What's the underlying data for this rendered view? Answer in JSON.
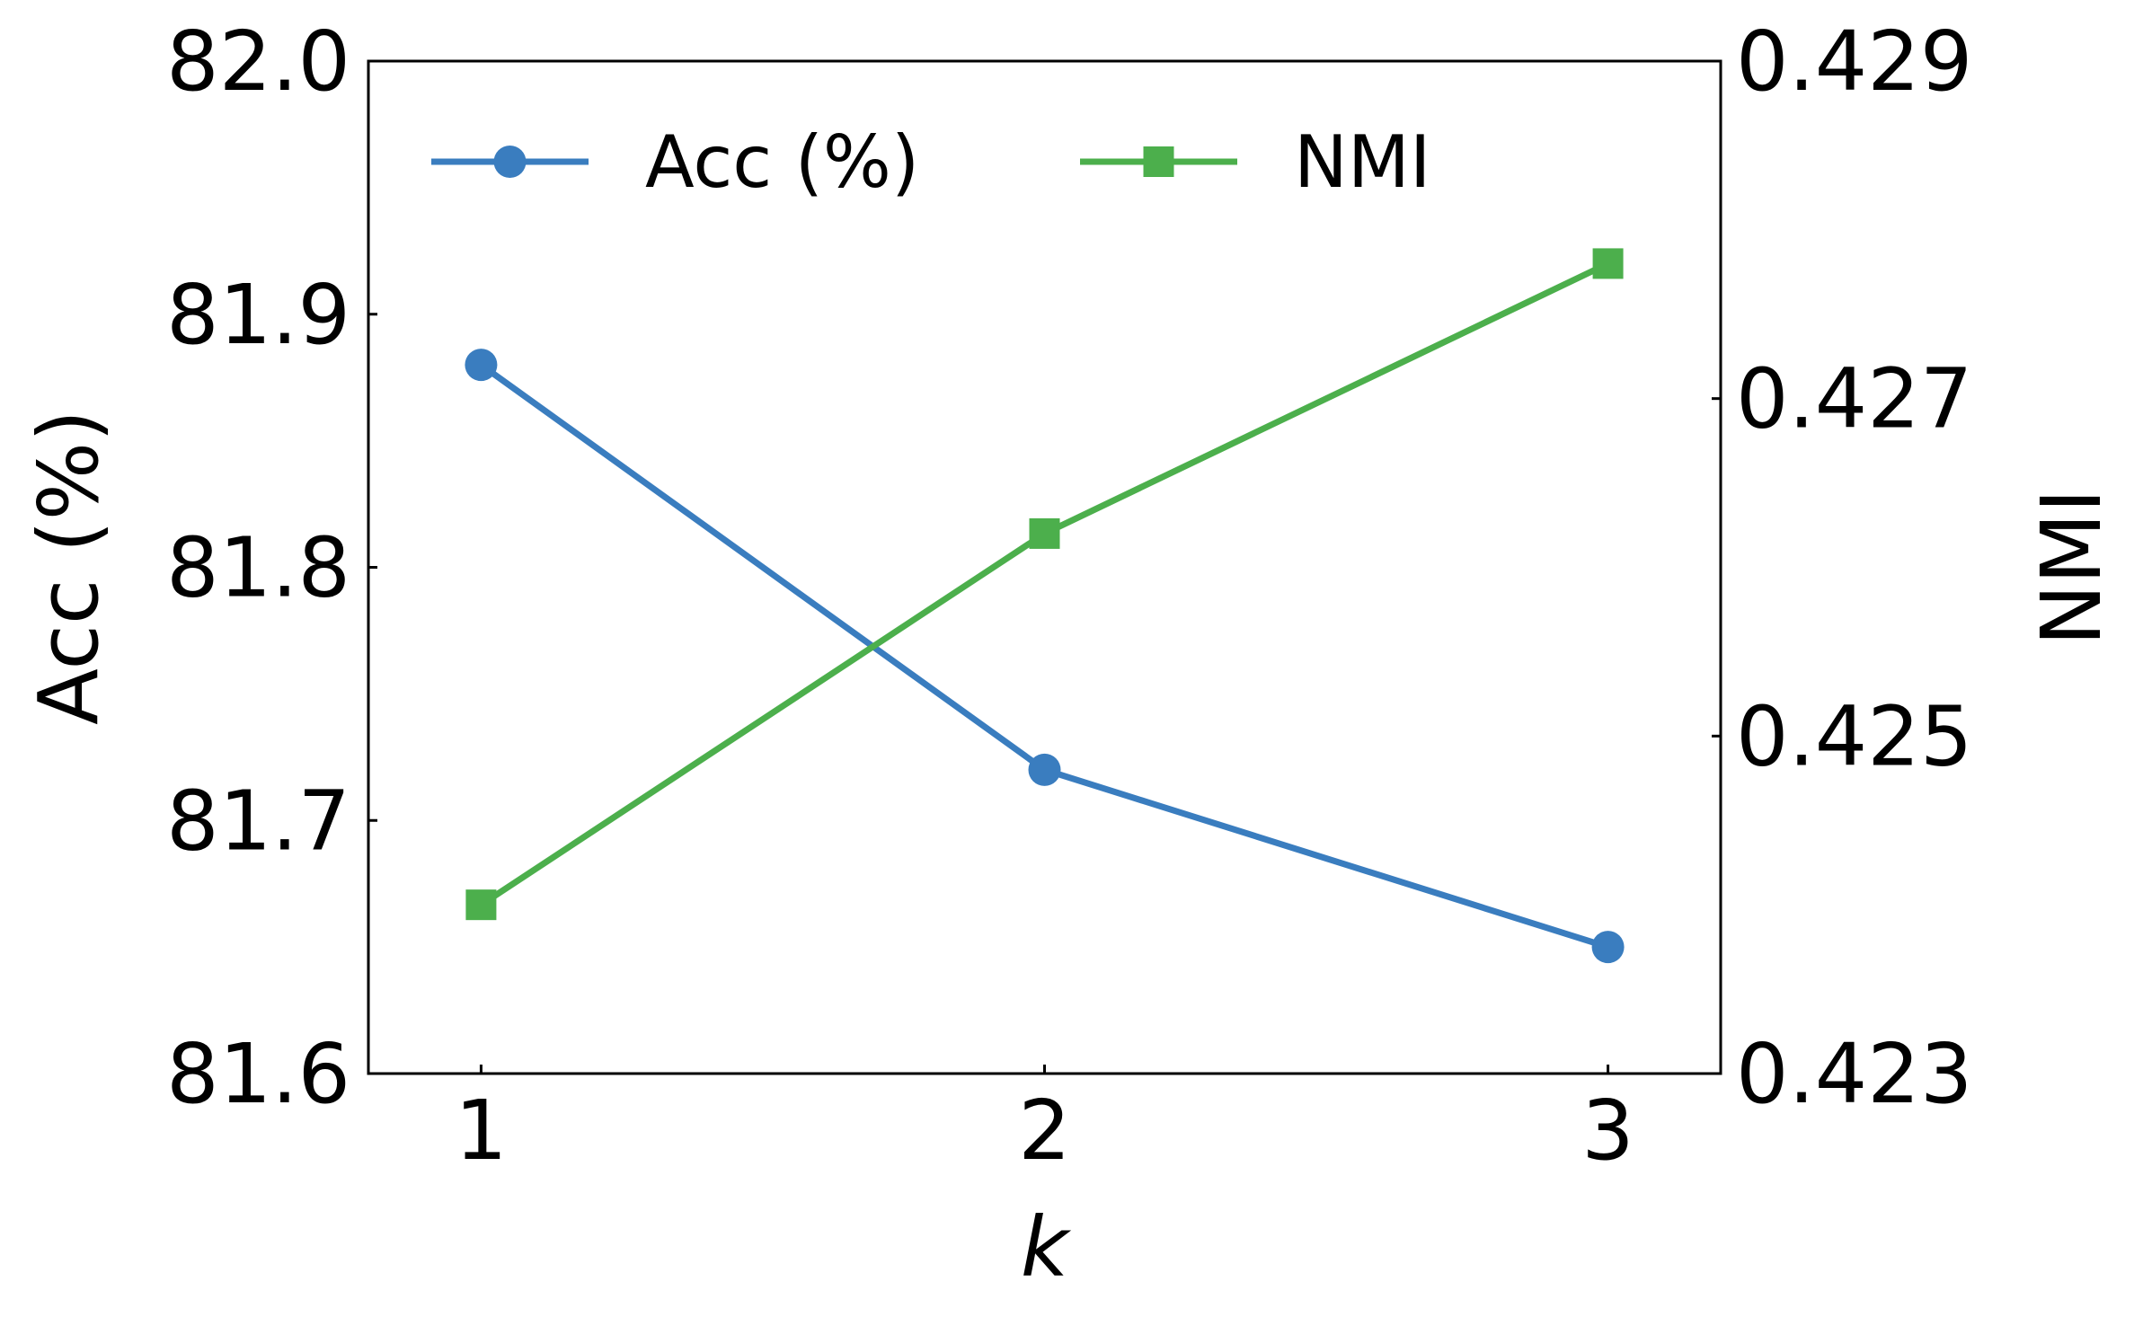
{
  "chart_data": {
    "type": "line",
    "x": [
      1,
      2,
      3
    ],
    "xlabel": "k",
    "xticks": [
      "1",
      "2",
      "3"
    ],
    "xlim": [
      0.8,
      3.2
    ],
    "left_axis": {
      "label": "Acc (%)",
      "ylim": [
        81.6,
        82.0
      ],
      "ticks": [
        "81.6",
        "81.7",
        "81.8",
        "81.9",
        "82.0"
      ]
    },
    "right_axis": {
      "label": "NMI",
      "ylim": [
        0.423,
        0.429
      ],
      "ticks": [
        "0.423",
        "0.425",
        "0.427",
        "0.429"
      ]
    },
    "series": [
      {
        "name": "Acc (%)",
        "axis": "left",
        "marker": "circle",
        "color": "#3a7dbf",
        "values": [
          81.88,
          81.72,
          81.65
        ]
      },
      {
        "name": "NMI",
        "axis": "right",
        "marker": "square",
        "color": "#4caf4c",
        "values": [
          0.424,
          0.4262,
          0.4278
        ]
      }
    ],
    "legend": {
      "placement": "top",
      "columns": 2
    },
    "grid": false
  }
}
